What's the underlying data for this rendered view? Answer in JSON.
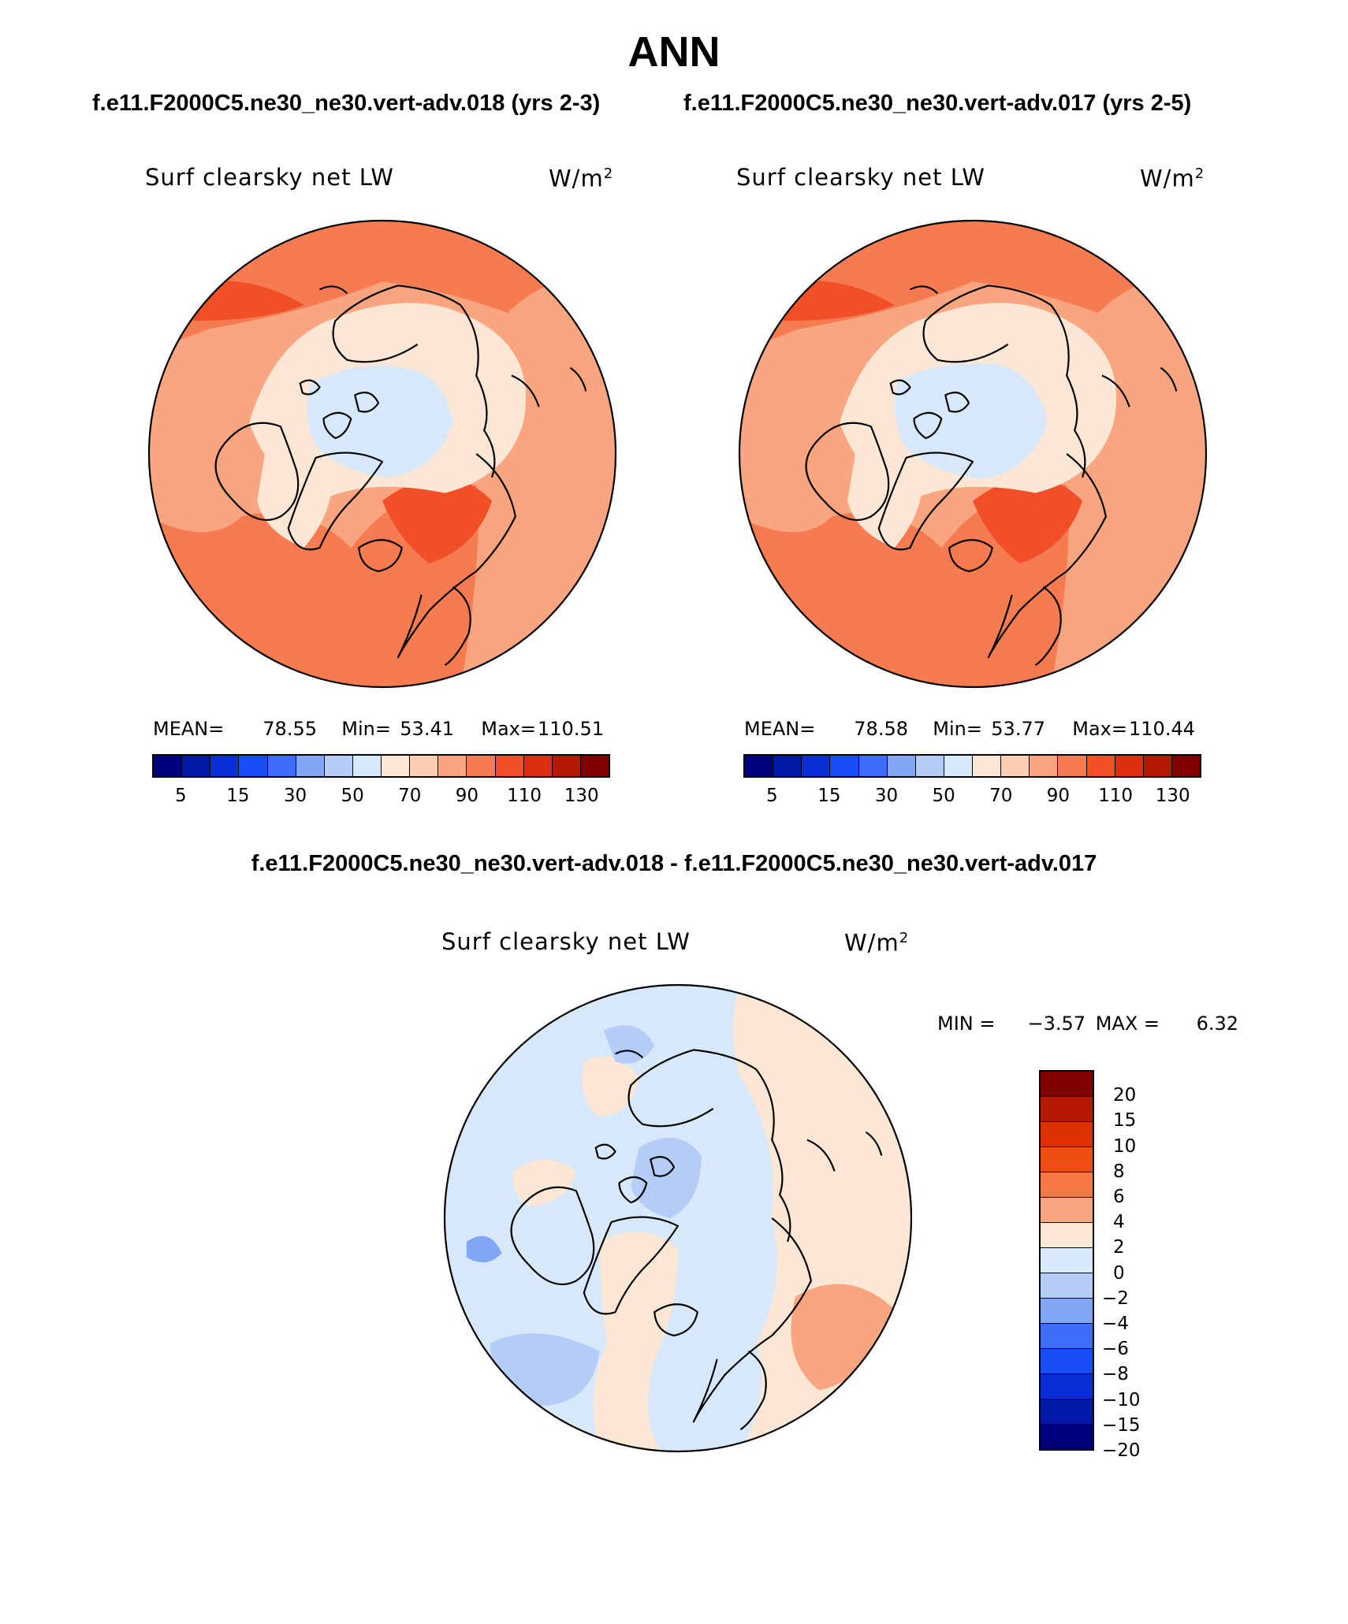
{
  "title": "ANN",
  "case1": {
    "title": "f.e11.F2000C5.ne30_ne30.vert-adv.018 (yrs 2-3)",
    "field": "Surf clearsky net LW",
    "units_base": "W/m",
    "units_exp": "2",
    "mean_label": "MEAN=",
    "mean": "78.55",
    "min_label": "Min=",
    "min": "53.41",
    "max_label": "Max=",
    "max": "110.51"
  },
  "case2": {
    "title": "f.e11.F2000C5.ne30_ne30.vert-adv.017 (yrs 2-5)",
    "field": "Surf clearsky net LW",
    "units_base": "W/m",
    "units_exp": "2",
    "mean_label": "MEAN=",
    "mean": "78.58",
    "min_label": "Min=",
    "min": "53.77",
    "max_label": "Max=",
    "max": "110.44"
  },
  "diff": {
    "title": "f.e11.F2000C5.ne30_ne30.vert-adv.018 - f.e11.F2000C5.ne30_ne30.vert-adv.017",
    "field": "Surf clearsky net LW",
    "units_base": "W/m",
    "units_exp": "2",
    "min_label": "MIN =",
    "min": "−3.57",
    "max_label": "MAX =",
    "max": "6.32"
  },
  "case_colorbar": {
    "colors": [
      "#00007f",
      "#0018a8",
      "#0a2ed8",
      "#1a4cf5",
      "#3c6ef9",
      "#80a6f5",
      "#b4cdf8",
      "#d8e8fb",
      "#fce6d4",
      "#fcccb0",
      "#f9a57f",
      "#f67b50",
      "#f04f27",
      "#dc2d10",
      "#b51800",
      "#800000"
    ],
    "tick_labels": [
      "5",
      "15",
      "30",
      "50",
      "70",
      "90",
      "110",
      "130"
    ]
  },
  "diff_colorbar": {
    "colors": [
      "#800000",
      "#b41800",
      "#dc3000",
      "#f04d10",
      "#f77843",
      "#f9a57f",
      "#fce6d4",
      "#d8e8fb",
      "#b4cdf8",
      "#80a6f5",
      "#3c6ef9",
      "#1a4cf5",
      "#0a2ed8",
      "#0018a8",
      "#00007f"
    ],
    "tick_labels": [
      "20",
      "15",
      "10",
      "8",
      "6",
      "4",
      "2",
      "0",
      "−2",
      "−4",
      "−6",
      "−8",
      "−10",
      "−15",
      "−20"
    ]
  }
}
